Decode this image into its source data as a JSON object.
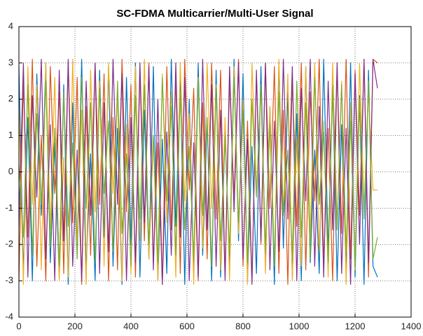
{
  "chart_data": {
    "type": "line",
    "title": "SC-FDMA Multicarrier/Multi-User Signal",
    "x": [
      0,
      16,
      32,
      48,
      64,
      80,
      96,
      112,
      128,
      144,
      160,
      176,
      192,
      208,
      224,
      240,
      256,
      272,
      288,
      304,
      320,
      336,
      352,
      368,
      384,
      400,
      416,
      432,
      448,
      464,
      480,
      496,
      512,
      528,
      544,
      560,
      576,
      592,
      608,
      624,
      640,
      656,
      672,
      688,
      704,
      720,
      736,
      752,
      768,
      784,
      800,
      816,
      832,
      848,
      864,
      880,
      896,
      912,
      928,
      944,
      960,
      976,
      992,
      1008,
      1024,
      1040,
      1056,
      1072,
      1088,
      1104,
      1120,
      1136,
      1152,
      1168,
      1184,
      1200,
      1216,
      1232,
      1248,
      1264,
      1280
    ],
    "series": [
      {
        "color": "#0072bd",
        "values": [
          2.9,
          -2.8,
          1.5,
          -3.0,
          2.7,
          -1.2,
          3.0,
          -2.5,
          0.8,
          -2.9,
          2.4,
          -3.1,
          1.9,
          -2.2,
          3.1,
          -2.7,
          0.5,
          -3.0,
          2.8,
          -1.8,
          2.9,
          -2.6,
          1.2,
          -3.1,
          2.6,
          -2.0,
          3.0,
          -2.9,
          1.7,
          -2.4,
          2.9,
          -3.0,
          0.9,
          -2.8,
          3.1,
          -1.5,
          2.5,
          -3.1,
          2.0,
          -2.7,
          3.0,
          -2.3,
          1.4,
          -3.0,
          2.8,
          -2.9,
          1.1,
          -2.6,
          3.1,
          -1.9,
          2.7,
          -3.0,
          0.7,
          -2.8,
          2.9,
          -2.4,
          1.8,
          -3.1,
          3.0,
          -2.1,
          2.2,
          -2.9,
          1.6,
          -3.0,
          2.9,
          -2.5,
          0.6,
          -2.8,
          3.1,
          -2.2,
          2.4,
          -3.0,
          1.3,
          -2.7,
          3.0,
          -2.9,
          2.1,
          -3.1,
          2.8,
          -2.6,
          -2.9
        ]
      },
      {
        "color": "#d95319",
        "values": [
          -3.0,
          2.5,
          -1.8,
          3.1,
          -2.6,
          1.0,
          -3.0,
          2.9,
          -0.6,
          2.2,
          -2.8,
          3.0,
          -1.4,
          2.6,
          -3.1,
          1.8,
          -2.3,
          3.0,
          -0.9,
          2.7,
          -3.0,
          1.5,
          -2.7,
          3.1,
          -1.1,
          2.4,
          -2.9,
          2.8,
          -1.9,
          3.0,
          -2.5,
          0.8,
          -3.1,
          2.9,
          -1.6,
          2.6,
          -2.8,
          3.1,
          -0.5,
          2.3,
          -3.0,
          1.9,
          -2.4,
          3.0,
          -1.3,
          2.8,
          -2.9,
          2.5,
          -0.7,
          3.1,
          -2.6,
          1.4,
          -3.0,
          2.7,
          -2.0,
          3.0,
          -1.0,
          2.9,
          -2.8,
          1.7,
          -3.1,
          2.6,
          -1.5,
          3.0,
          -2.7,
          2.2,
          -0.8,
          3.1,
          -2.5,
          1.2,
          -3.0,
          2.9,
          -1.7,
          3.1,
          -2.4,
          2.8,
          -1.2,
          3.1,
          -2.9,
          3.1,
          3.0
        ]
      },
      {
        "color": "#edb120",
        "values": [
          1.8,
          -3.1,
          2.9,
          -0.9,
          2.4,
          -2.7,
          3.0,
          -1.6,
          2.6,
          -3.0,
          0.4,
          -2.9,
          3.1,
          -2.0,
          1.7,
          -3.1,
          2.8,
          -1.1,
          2.5,
          -2.6,
          3.0,
          -0.6,
          2.1,
          -3.0,
          1.3,
          -2.8,
          2.9,
          -1.9,
          3.1,
          -2.4,
          0.9,
          -3.0,
          2.7,
          -1.4,
          2.2,
          -2.9,
          3.0,
          -0.8,
          1.6,
          -3.1,
          2.6,
          -2.1,
          3.0,
          -1.0,
          2.4,
          -2.7,
          1.5,
          -3.0,
          2.9,
          -1.7,
          2.0,
          -3.1,
          3.0,
          -0.5,
          2.3,
          -2.8,
          1.8,
          -2.5,
          3.1,
          -1.2,
          2.7,
          -3.0,
          0.9,
          -2.6,
          2.9,
          -1.8,
          3.0,
          -2.2,
          1.4,
          -2.9,
          3.0,
          -1.5,
          2.5,
          -3.1,
          1.9,
          -2.7,
          3.0,
          -1.0,
          2.2,
          -0.5,
          -0.5
        ]
      },
      {
        "color": "#7e2f8e",
        "values": [
          -1.5,
          3.0,
          -2.9,
          2.1,
          -0.7,
          3.1,
          -2.4,
          1.3,
          -3.0,
          2.8,
          -1.9,
          3.1,
          -2.6,
          0.6,
          -3.0,
          2.5,
          -1.2,
          3.0,
          -2.8,
          1.9,
          -2.2,
          3.1,
          -0.9,
          2.7,
          -3.0,
          1.5,
          -2.5,
          3.0,
          -1.4,
          2.9,
          -2.7,
          2.0,
          -3.1,
          1.1,
          -2.3,
          3.0,
          -1.8,
          2.6,
          -3.0,
          0.8,
          -2.9,
          3.1,
          -1.6,
          2.4,
          -2.6,
          1.7,
          -3.0,
          2.9,
          -1.1,
          3.0,
          -2.4,
          0.9,
          -3.1,
          2.8,
          -1.9,
          3.0,
          -2.7,
          1.4,
          -2.2,
          3.1,
          -1.3,
          2.9,
          -3.0,
          2.3,
          -0.8,
          3.1,
          -2.6,
          1.8,
          -2.9,
          2.5,
          -1.6,
          3.0,
          -2.8,
          1.2,
          -3.1,
          2.7,
          -2.0,
          3.1,
          -2.5,
          3.1,
          2.3
        ]
      },
      {
        "color": "#77ac30",
        "values": [
          0.2,
          -1.8,
          2.4,
          -2.3,
          1.6,
          -0.9,
          2.5,
          -2.1,
          1.2,
          -2.6,
          2.2,
          -1.5,
          0.8,
          -2.4,
          2.6,
          -1.0,
          1.9,
          -2.5,
          2.3,
          -0.6,
          1.4,
          -2.2,
          2.5,
          -1.7,
          0.5,
          -2.6,
          2.1,
          -1.3,
          2.4,
          -2.0,
          1.0,
          -2.5,
          2.6,
          -0.8,
          1.8,
          -2.3,
          2.2,
          -1.6,
          0.7,
          -2.4,
          2.5,
          -1.2,
          1.5,
          -2.6,
          2.3,
          -1.9,
          0.9,
          -2.2,
          2.6,
          -1.4,
          1.7,
          -2.5,
          2.0,
          -0.7,
          2.4,
          -2.1,
          1.3,
          -2.6,
          2.2,
          -1.1,
          0.6,
          -2.3,
          2.5,
          -1.8,
          1.9,
          -2.4,
          2.6,
          -0.9,
          1.1,
          -2.5,
          2.3,
          -1.6,
          2.4,
          -2.2,
          1.4,
          -2.6,
          2.0,
          -1.3,
          2.5,
          -2.4,
          -1.8
        ]
      }
    ],
    "xlim": [
      0,
      1400
    ],
    "xticks": [
      0,
      200,
      400,
      600,
      800,
      1000,
      1200,
      1400
    ],
    "ylim": [
      -4,
      4
    ],
    "yticks": [
      -4,
      -3,
      -2,
      -1,
      0,
      1,
      2,
      3,
      4
    ],
    "grid": true
  }
}
